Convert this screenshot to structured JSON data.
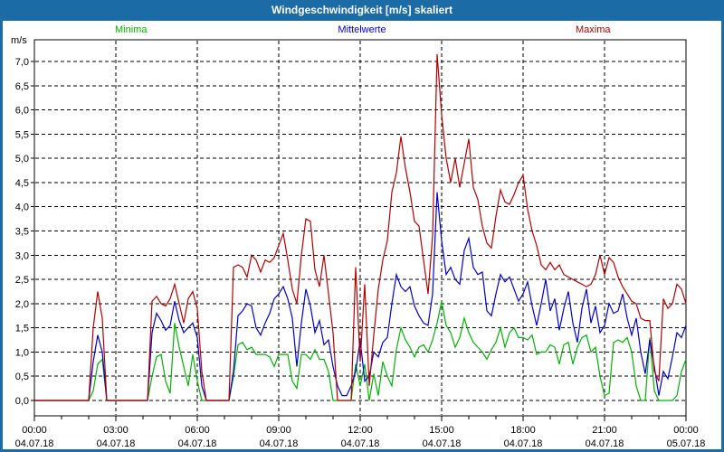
{
  "window": {
    "title": "Windgeschwindigkeit [m/s] skaliert"
  },
  "unit_label": "m/s",
  "colors": {
    "titlebar": "#1a6ba6",
    "window_border": "#1a6ba6",
    "minima_line": "#00b400",
    "mittelwerte_line": "#0000cc",
    "maxima_line": "#b40000",
    "grid": "#000000",
    "plot_background": "#ffffff"
  },
  "chart_data": {
    "type": "line",
    "title": "Windgeschwindigkeit [m/s] skaliert",
    "ylabel": "m/s",
    "xlabel": "",
    "grid": "dashed",
    "legend_position": "top",
    "ylim": [
      0,
      7.0
    ],
    "y_tick_step": 0.5,
    "y_tick_labels": [
      "0,0",
      "0,5",
      "1,0",
      "1,5",
      "2,0",
      "2,5",
      "3,0",
      "3,5",
      "4,0",
      "4,5",
      "5,0",
      "5,5",
      "6,0",
      "6,5",
      "7,0"
    ],
    "x_range_minutes": [
      0,
      1440
    ],
    "sample_minutes": 10,
    "x_minor_tick_minutes": 60,
    "x_major_ticks": [
      {
        "minutes": 0,
        "time": "00:00",
        "date": "04.07.18"
      },
      {
        "minutes": 180,
        "time": "03:00",
        "date": "04.07.18"
      },
      {
        "minutes": 360,
        "time": "06:00",
        "date": "04.07.18"
      },
      {
        "minutes": 540,
        "time": "09:00",
        "date": "04.07.18"
      },
      {
        "minutes": 720,
        "time": "12:00",
        "date": "04.07.18"
      },
      {
        "minutes": 900,
        "time": "15:00",
        "date": "04.07.18"
      },
      {
        "minutes": 1080,
        "time": "18:00",
        "date": "04.07.18"
      },
      {
        "minutes": 1260,
        "time": "21:00",
        "date": "04.07.18"
      },
      {
        "minutes": 1440,
        "time": "00:00",
        "date": "05.07.18"
      }
    ],
    "series": [
      {
        "name": "Minima",
        "color": "#00b400",
        "values": [
          0,
          0,
          0,
          0,
          0,
          0,
          0,
          0,
          0,
          0,
          0,
          0,
          0,
          0.2,
          0.75,
          0.85,
          0,
          0,
          0,
          0,
          0,
          0,
          0,
          0,
          0,
          0,
          0.5,
          0.9,
          0.95,
          0.4,
          0.15,
          1.6,
          1.1,
          0.7,
          0.3,
          0.95,
          0.4,
          0,
          0,
          0,
          0,
          0,
          0,
          0,
          0.5,
          1.15,
          1.2,
          1.05,
          1.1,
          0.95,
          0.95,
          0.95,
          0.9,
          0.7,
          0.95,
          0.95,
          0.95,
          0.4,
          0.25,
          0.95,
          0.95,
          0.85,
          1.05,
          0.85,
          0.85,
          0.6,
          0,
          0,
          0,
          0,
          0,
          0.75,
          0.3,
          0.75,
          0,
          0.55,
          0.1,
          0.8,
          0.5,
          0.3,
          1.05,
          1.5,
          1.25,
          1.1,
          0.9,
          1.1,
          1.15,
          1,
          1.25,
          1.6,
          2.05,
          1.55,
          1.4,
          1.1,
          1.3,
          1.7,
          1.4,
          1.2,
          1.1,
          1,
          0.85,
          1.05,
          1.2,
          1.5,
          1.1,
          1.4,
          1.5,
          1.3,
          1.3,
          1.25,
          1.35,
          0.95,
          1,
          1,
          1.15,
          1.1,
          0.75,
          1.15,
          1.2,
          0.75,
          1.1,
          1.3,
          1.35,
          1,
          1.1,
          0.5,
          0.1,
          0.15,
          1.2,
          1.25,
          1.2,
          1.3,
          1,
          0.3,
          0,
          0,
          1.3,
          0.2,
          0,
          0,
          0,
          0,
          0.1,
          0.6,
          0.85
        ]
      },
      {
        "name": "Mittelwerte",
        "color": "#0000cc",
        "values": [
          0,
          0,
          0,
          0,
          0,
          0,
          0,
          0,
          0,
          0,
          0,
          0,
          0,
          0.8,
          1.35,
          1,
          0,
          0,
          0,
          0,
          0,
          0,
          0,
          0,
          0,
          0,
          1.4,
          1.8,
          1.65,
          1.45,
          1.55,
          2.05,
          1.65,
          1.4,
          1.5,
          1.6,
          1.3,
          0.3,
          0,
          0,
          0,
          0,
          0,
          0,
          0.6,
          1.75,
          1.85,
          2,
          1.95,
          1.5,
          1.35,
          1.6,
          1.8,
          2.1,
          2.2,
          2.35,
          2.1,
          1.7,
          0.7,
          1.6,
          2.3,
          1.95,
          1.4,
          1.65,
          1.15,
          1.25,
          0.7,
          0.3,
          0.1,
          0.1,
          0.3,
          0.6,
          1.25,
          0.4,
          0.5,
          1,
          0.9,
          1.2,
          1.3,
          2,
          2.6,
          2.35,
          2.25,
          2.35,
          1.95,
          1.75,
          1.6,
          1.55,
          2.2,
          4.3,
          3.3,
          2.6,
          2.75,
          2.5,
          2.4,
          3.1,
          3.35,
          2.75,
          2.6,
          2.65,
          1.85,
          1.75,
          2.2,
          2.6,
          2.45,
          2.55,
          2.3,
          2.05,
          2.2,
          2.45,
          1.95,
          1.55,
          2,
          2.5,
          1.85,
          2.1,
          1.45,
          1.9,
          2.25,
          1.6,
          1.2,
          1.9,
          2.3,
          1.6,
          1.95,
          1.4,
          1.55,
          2,
          1.8,
          1.85,
          2.2,
          1.7,
          1.35,
          1.7,
          1,
          0.55,
          1.25,
          0.7,
          0.1,
          0.6,
          0.45,
          0.9,
          1.4,
          1.3,
          1.55
        ]
      },
      {
        "name": "Maxima",
        "color": "#b40000",
        "values": [
          0,
          0,
          0,
          0,
          0,
          0,
          0,
          0,
          0,
          0,
          0,
          0,
          0,
          1.5,
          2.25,
          1.7,
          0,
          0,
          0,
          0,
          0,
          0,
          0,
          0,
          0,
          0,
          2.05,
          2.15,
          2,
          1.95,
          2.1,
          2.4,
          2,
          1.6,
          2.1,
          2.25,
          1.9,
          0.6,
          0,
          0,
          0,
          0,
          0,
          0,
          2.75,
          2.8,
          2.75,
          2.55,
          3,
          2.9,
          2.65,
          2.9,
          2.85,
          2.95,
          3.2,
          3.45,
          2.9,
          2.3,
          2,
          3,
          3.75,
          3.7,
          2.7,
          2.35,
          3,
          2.2,
          1.4,
          0,
          0,
          0,
          0,
          2.75,
          0.8,
          2.4,
          0.3,
          1.35,
          2.3,
          2.9,
          3.3,
          4.3,
          4.7,
          5.45,
          4.8,
          4.3,
          3.7,
          3.6,
          2.9,
          2.2,
          3.4,
          7.15,
          5.9,
          5,
          4.5,
          5,
          4.4,
          4.9,
          5.4,
          4.4,
          4.15,
          3.6,
          3.25,
          3.15,
          3.8,
          4.35,
          4.1,
          4.05,
          4.25,
          4.5,
          4.65,
          3.95,
          3.5,
          3.2,
          2.8,
          2.7,
          2.85,
          2.7,
          2.8,
          2.6,
          2.55,
          2.5,
          2.45,
          2.4,
          2.35,
          2.4,
          2.6,
          3,
          2.6,
          2.95,
          2.85,
          2.55,
          2.35,
          2.2,
          2.05,
          2,
          1.7,
          1.65,
          1.65,
          0.6,
          0.4,
          2.1,
          1.9,
          2,
          2.4,
          2.3,
          2
        ]
      }
    ]
  }
}
